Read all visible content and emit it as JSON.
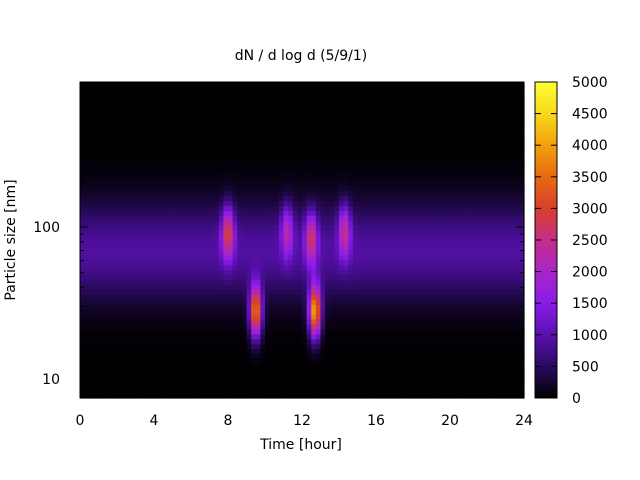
{
  "chart_data": {
    "type": "heatmap",
    "title": "dN / d log d (5/9/1)",
    "xlabel": "Time [hour]",
    "ylabel": "Particle size [nm]",
    "xlim": [
      0,
      24
    ],
    "ylim": [
      7.5,
      900
    ],
    "yscale": "log",
    "x_ticks": [
      0,
      4,
      8,
      12,
      16,
      20,
      24
    ],
    "x_tick_labels": [
      "0",
      "4",
      "8",
      "12",
      "16",
      "20",
      "24"
    ],
    "y_ticks": [
      10,
      100
    ],
    "y_tick_labels": [
      "10",
      "100"
    ],
    "colorbar": {
      "min": 0,
      "max": 5000,
      "ticks": [
        0,
        500,
        1000,
        1500,
        2000,
        2500,
        3000,
        3500,
        4000,
        4500,
        5000
      ],
      "tick_labels": [
        "0",
        "500",
        "1000",
        "1500",
        "2000",
        "2500",
        "3000",
        "3500",
        "4000",
        "4500",
        "5000"
      ],
      "colormap": [
        "#000000",
        "#2a0a5e",
        "#5a10b0",
        "#8a1ce8",
        "#a826c8",
        "#c42e8a",
        "#d8402a",
        "#e86a12",
        "#f2a00e",
        "#f8d81a",
        "#ffff30"
      ]
    },
    "background": 0,
    "features": [
      {
        "time": 9.5,
        "size": 28,
        "peak": 3600
      },
      {
        "time": 12.7,
        "size": 28,
        "peak": 3900
      },
      {
        "time": 8.0,
        "size": 92,
        "peak": 2300
      },
      {
        "time": 12.5,
        "size": 85,
        "peak": 2000
      },
      {
        "time": 14.3,
        "size": 95,
        "peak": 1800
      },
      {
        "time": 11.2,
        "size": 95,
        "peak": 1500
      }
    ],
    "band": {
      "size": 70,
      "level": 900
    }
  }
}
